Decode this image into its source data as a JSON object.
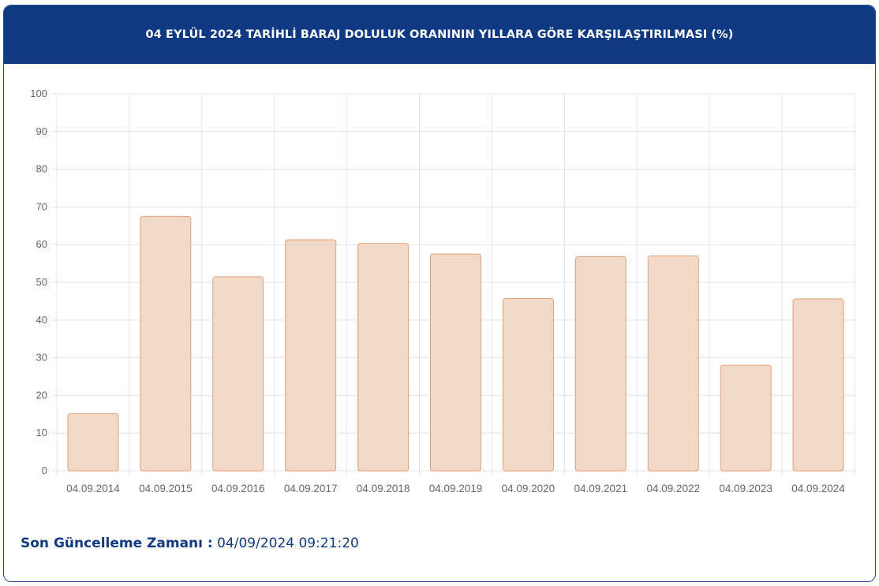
{
  "header": {
    "title": "04 EYLÜL 2024 TARİHLİ BARAJ DOLULUK ORANININ YILLARA GÖRE KARŞILAŞTIRILMASI (%)"
  },
  "footer": {
    "label": "Son Güncelleme Zamanı :",
    "value": "04/09/2024 09:21:20"
  },
  "colors": {
    "header_bg": "#0f3a83",
    "bar_fill": "#f2d8c6",
    "bar_stroke": "#e0a27a"
  },
  "chart_data": {
    "type": "bar",
    "categories": [
      "04.09.2014",
      "04.09.2015",
      "04.09.2016",
      "04.09.2017",
      "04.09.2018",
      "04.09.2019",
      "04.09.2020",
      "04.09.2021",
      "04.09.2022",
      "04.09.2023",
      "04.09.2024"
    ],
    "series": [
      {
        "values": [
          15.2,
          67.5,
          51.5,
          61.3,
          60.3,
          57.5,
          45.7,
          56.8,
          57.0,
          28.0,
          45.6
        ]
      }
    ],
    "yticks": [
      0,
      10,
      20,
      30,
      40,
      50,
      60,
      70,
      80,
      90,
      100
    ],
    "ylim": [
      0,
      100
    ],
    "grid": true,
    "legend": "none"
  }
}
